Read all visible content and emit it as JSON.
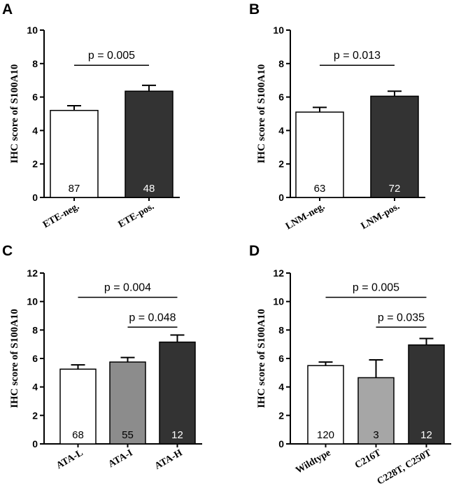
{
  "chart_data": [
    {
      "panel": "A",
      "type": "bar",
      "ylabel": "IHC score of S100A10",
      "ylim": [
        0,
        10
      ],
      "yticks": [
        "0",
        "2",
        "4",
        "6",
        "8",
        "10"
      ],
      "categories": [
        "ETE-neg.",
        "ETE-pos."
      ],
      "values": [
        5.2,
        6.35
      ],
      "errors": [
        0.28,
        0.35
      ],
      "n_labels": [
        "87",
        "48"
      ],
      "colors": [
        "#ffffff",
        "#333333"
      ],
      "comparisons": [
        {
          "from": 0,
          "to": 1,
          "y": 7.9,
          "label": "p = 0.005"
        }
      ]
    },
    {
      "panel": "B",
      "type": "bar",
      "ylabel": "IHC score of S100A10",
      "ylim": [
        0,
        10
      ],
      "yticks": [
        "0",
        "2",
        "4",
        "6",
        "8",
        "10"
      ],
      "categories": [
        "LNM-neg.",
        "LNM-pos."
      ],
      "values": [
        5.1,
        6.05
      ],
      "errors": [
        0.28,
        0.3
      ],
      "n_labels": [
        "63",
        "72"
      ],
      "colors": [
        "#ffffff",
        "#333333"
      ],
      "comparisons": [
        {
          "from": 0,
          "to": 1,
          "y": 7.9,
          "label": "p = 0.013"
        }
      ]
    },
    {
      "panel": "C",
      "type": "bar",
      "ylabel": "IHC score of S100A10",
      "ylim": [
        0,
        12
      ],
      "yticks": [
        "0",
        "2",
        "4",
        "6",
        "8",
        "10",
        "12"
      ],
      "categories": [
        "ATA-L",
        "ATA-I",
        "ATA-H"
      ],
      "values": [
        5.25,
        5.75,
        7.15
      ],
      "errors": [
        0.3,
        0.32,
        0.5
      ],
      "n_labels": [
        "68",
        "55",
        "12"
      ],
      "colors": [
        "#ffffff",
        "#8c8c8c",
        "#333333"
      ],
      "comparisons": [
        {
          "from": 0,
          "to": 2,
          "y": 10.3,
          "label": "p = 0.004"
        },
        {
          "from": 1,
          "to": 2,
          "y": 8.2,
          "label": "p = 0.048"
        }
      ]
    },
    {
      "panel": "D",
      "type": "bar",
      "ylabel": "IHC score of S100A10",
      "ylim": [
        0,
        12
      ],
      "yticks": [
        "0",
        "2",
        "4",
        "6",
        "8",
        "10",
        "12"
      ],
      "categories": [
        "Wildtype",
        "C216T",
        "C228T, C250T"
      ],
      "values": [
        5.5,
        4.65,
        6.95
      ],
      "errors": [
        0.25,
        1.25,
        0.45
      ],
      "n_labels": [
        "120",
        "3",
        "12"
      ],
      "colors": [
        "#ffffff",
        "#a6a6a6",
        "#333333"
      ],
      "comparisons": [
        {
          "from": 0,
          "to": 2,
          "y": 10.3,
          "label": "p = 0.005"
        },
        {
          "from": 1,
          "to": 2,
          "y": 8.2,
          "label": "p = 0.035"
        }
      ]
    }
  ]
}
